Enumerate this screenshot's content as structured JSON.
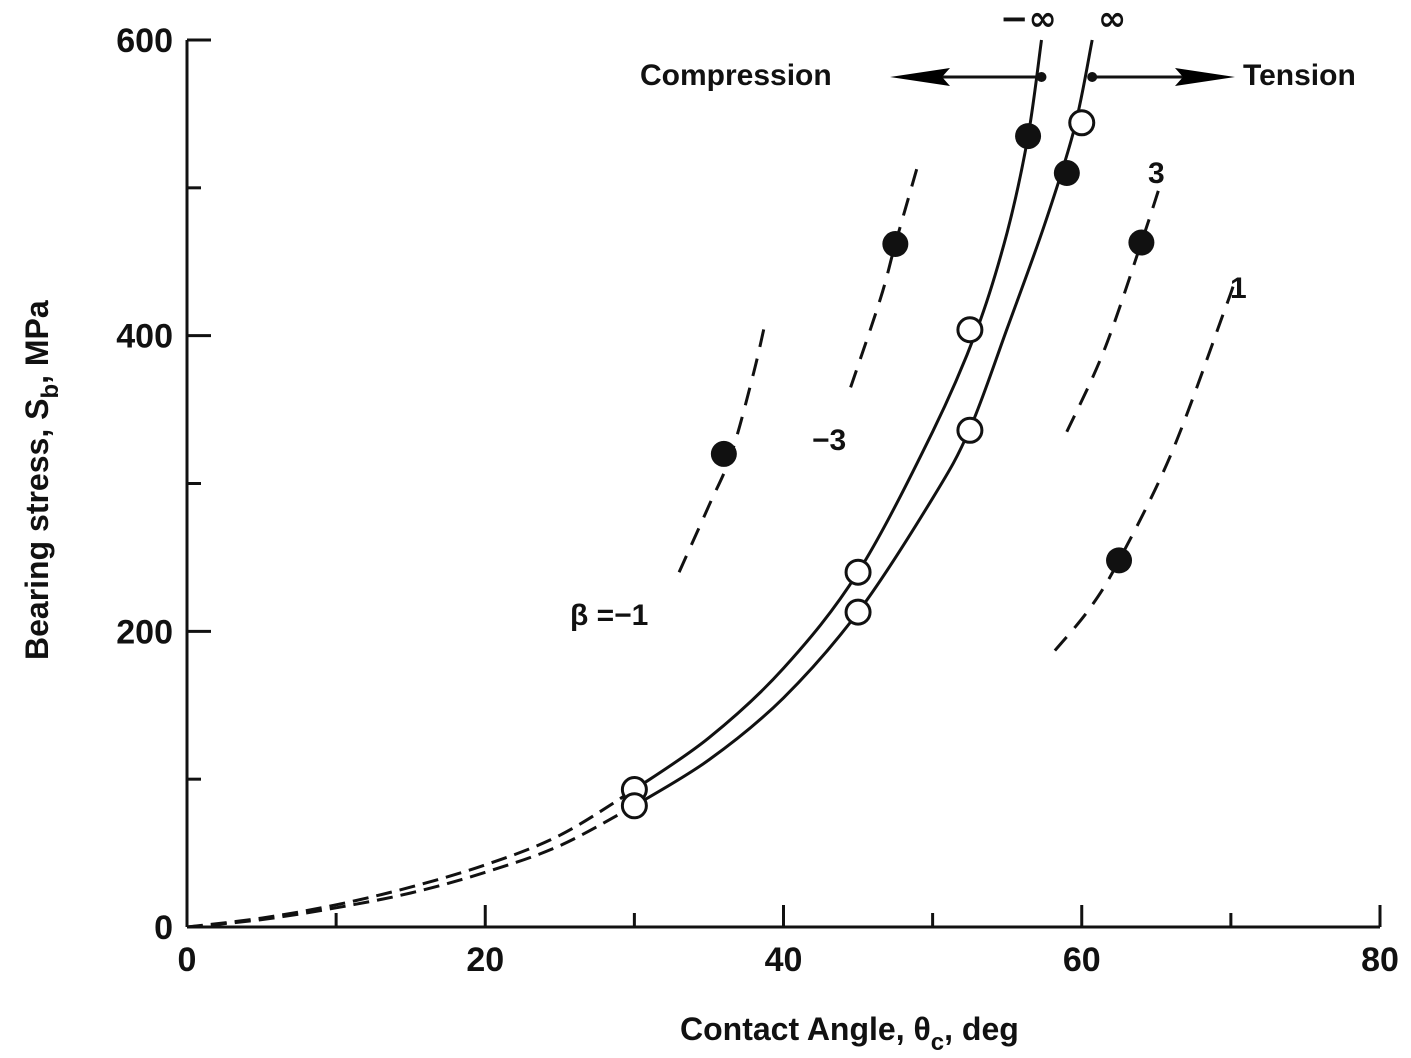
{
  "chart_data": {
    "type": "line",
    "xlabel": "Contact Angle, θc, deg",
    "xlabel_parts": [
      "Contact Angle, θ",
      "c",
      ", deg"
    ],
    "ylabel": "Bearing stress, Sb, MPa",
    "ylabel_parts": [
      "Bearing stress, S",
      "b",
      ", MPa"
    ],
    "xlim": [
      0,
      80
    ],
    "ylim": [
      0,
      600
    ],
    "x_ticks": [
      0,
      20,
      40,
      60,
      80
    ],
    "x_minor_ticks": [
      10,
      30,
      50,
      70
    ],
    "y_ticks": [
      0,
      200,
      400,
      600
    ],
    "y_minor_ticks": [
      100,
      300,
      500
    ],
    "grid": false,
    "arrows": {
      "compression": "Compression",
      "tension": "Tension"
    },
    "series": [
      {
        "name": "−∞",
        "style": "solid",
        "points": [
          [
            30,
            93
          ],
          [
            35,
            128
          ],
          [
            40,
            175
          ],
          [
            45,
            240
          ],
          [
            50,
            335
          ],
          [
            53,
            405
          ],
          [
            55,
            470
          ],
          [
            56.4,
            535
          ],
          [
            57.3,
            600
          ]
        ],
        "dashed_start": [
          [
            0,
            0
          ],
          [
            5,
            6
          ],
          [
            10,
            15
          ],
          [
            15,
            27
          ],
          [
            20,
            42
          ],
          [
            25,
            62
          ],
          [
            30,
            93
          ]
        ],
        "open_markers": [
          [
            30,
            93
          ],
          [
            45,
            240
          ],
          [
            52.5,
            404
          ]
        ],
        "filled_markers": [
          [
            56.4,
            535
          ]
        ]
      },
      {
        "name": "∞",
        "style": "solid",
        "points": [
          [
            30,
            82
          ],
          [
            35,
            113
          ],
          [
            40,
            155
          ],
          [
            45,
            213
          ],
          [
            50,
            290
          ],
          [
            52.5,
            337
          ],
          [
            55,
            405
          ],
          [
            57.5,
            475
          ],
          [
            59.5,
            540
          ],
          [
            60.7,
            600
          ]
        ],
        "dashed_start": [
          [
            0,
            0
          ],
          [
            5,
            5
          ],
          [
            10,
            13
          ],
          [
            15,
            23
          ],
          [
            20,
            37
          ],
          [
            25,
            55
          ],
          [
            30,
            82
          ]
        ],
        "open_markers": [
          [
            30,
            82
          ],
          [
            45,
            213
          ],
          [
            52.5,
            336
          ],
          [
            60,
            544
          ]
        ],
        "filled_markers": [
          [
            59,
            510
          ]
        ]
      },
      {
        "name": "β = −1",
        "style": "dashed",
        "points": [
          [
            33,
            240
          ],
          [
            35,
            285
          ],
          [
            36.5,
            320
          ],
          [
            38,
            375
          ],
          [
            38.8,
            410
          ]
        ],
        "filled_markers": [
          [
            36,
            320
          ]
        ]
      },
      {
        "name": "−3",
        "style": "dashed",
        "points": [
          [
            44.5,
            365
          ],
          [
            46.5,
            425
          ],
          [
            47.5,
            462
          ],
          [
            49,
            515
          ]
        ],
        "filled_markers": [
          [
            47.5,
            462
          ]
        ]
      },
      {
        "name": "3",
        "style": "dashed",
        "points": [
          [
            59,
            335
          ],
          [
            61.5,
            390
          ],
          [
            64,
            463
          ],
          [
            65.2,
            500
          ]
        ],
        "filled_markers": [
          [
            64,
            463
          ]
        ]
      },
      {
        "name": "1",
        "style": "dashed",
        "points": [
          [
            58.2,
            187
          ],
          [
            60.5,
            215
          ],
          [
            62.5,
            248
          ],
          [
            66,
            320
          ],
          [
            69.5,
            415
          ],
          [
            70.2,
            435
          ]
        ],
        "filled_markers": [
          [
            62.5,
            248
          ]
        ]
      }
    ],
    "labels": {
      "beta_m1": "β =−1",
      "m3": "−3",
      "p3": "3",
      "p1": "1",
      "minf": "−∞",
      "pinf": "∞"
    }
  }
}
